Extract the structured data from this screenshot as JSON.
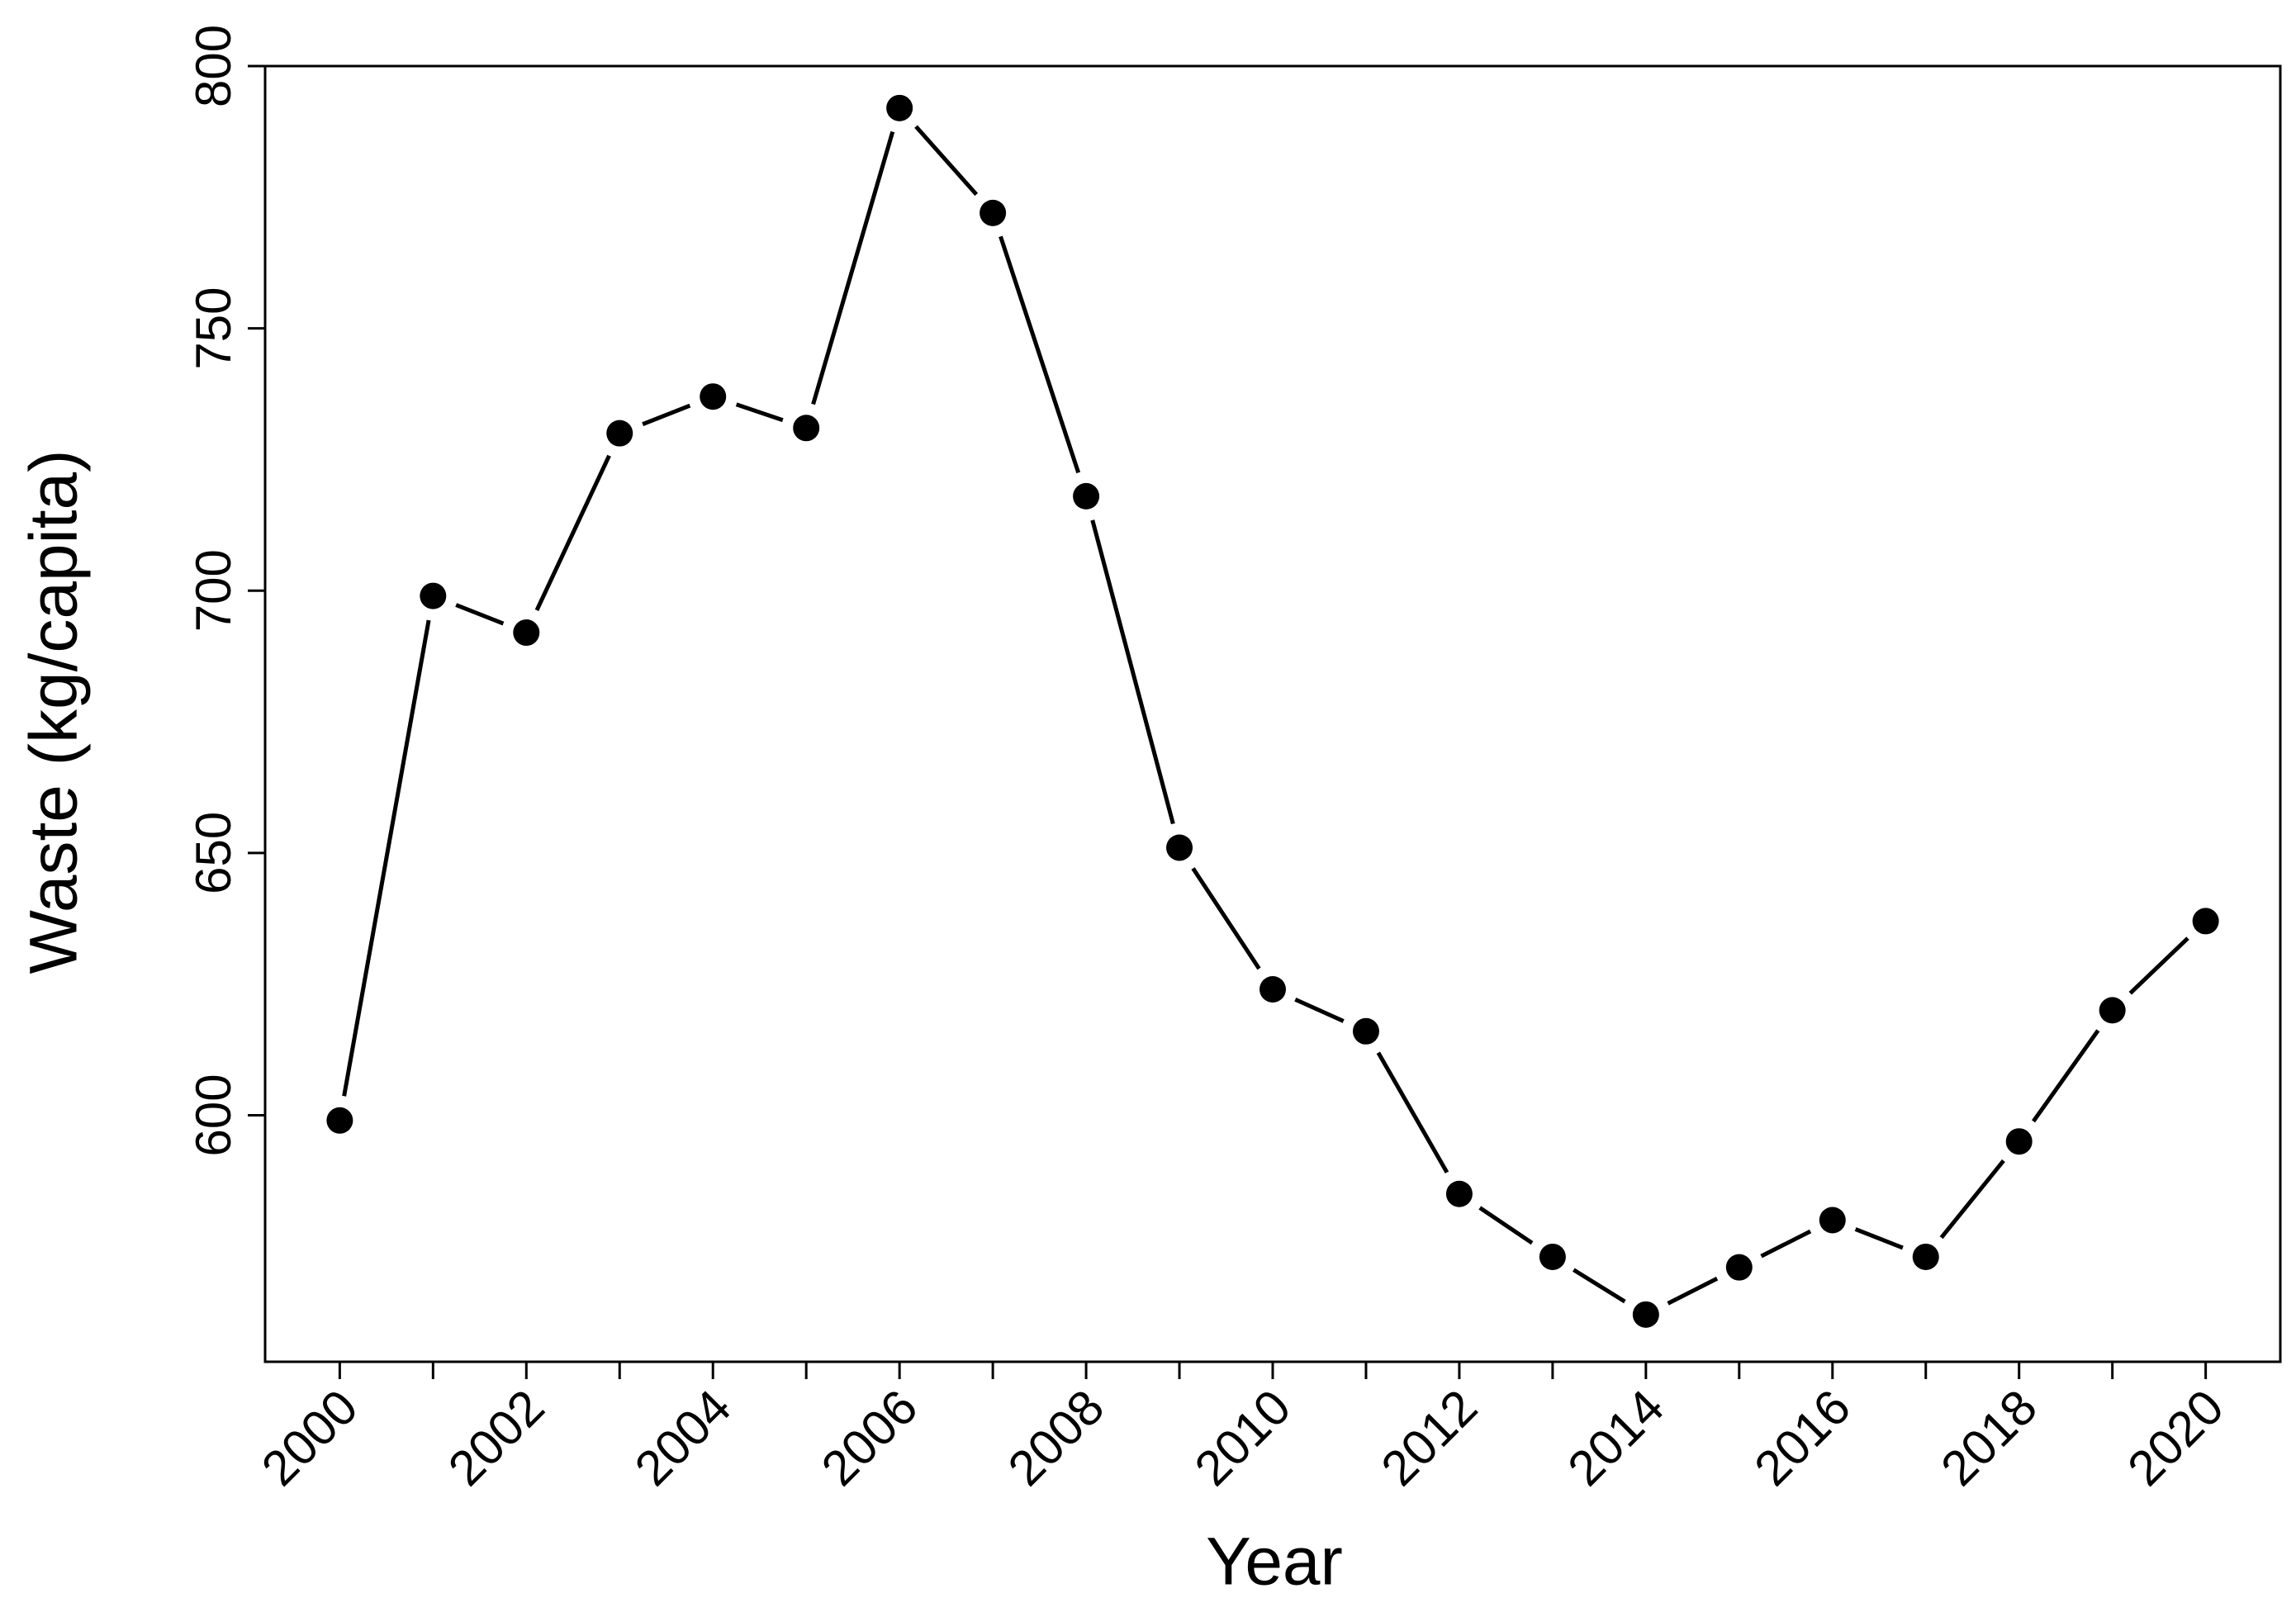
{
  "chart_data": {
    "type": "line",
    "x_label": "Year",
    "y_label": "Waste (kg/capita)",
    "x": [
      2000,
      2001,
      2002,
      2003,
      2004,
      2005,
      2006,
      2007,
      2008,
      2009,
      2010,
      2011,
      2012,
      2013,
      2014,
      2015,
      2016,
      2017,
      2018,
      2019,
      2020
    ],
    "values": [
      599,
      699,
      692,
      730,
      737,
      731,
      792,
      772,
      718,
      651,
      624,
      616,
      585,
      573,
      562,
      571,
      580,
      573,
      595,
      620,
      637
    ],
    "color": "#000000",
    "xlim": [
      1999.2,
      2020.8
    ],
    "xticks": [
      2000,
      2002,
      2004,
      2006,
      2008,
      2010,
      2012,
      2014,
      2016,
      2018,
      2020
    ],
    "xminorticks": [
      2001,
      2003,
      2005,
      2007,
      2009,
      2011,
      2013,
      2015,
      2017,
      2019
    ],
    "ylim": [
      553,
      800
    ],
    "yticks": [
      600,
      650,
      700,
      750,
      800
    ],
    "grid": false
  }
}
